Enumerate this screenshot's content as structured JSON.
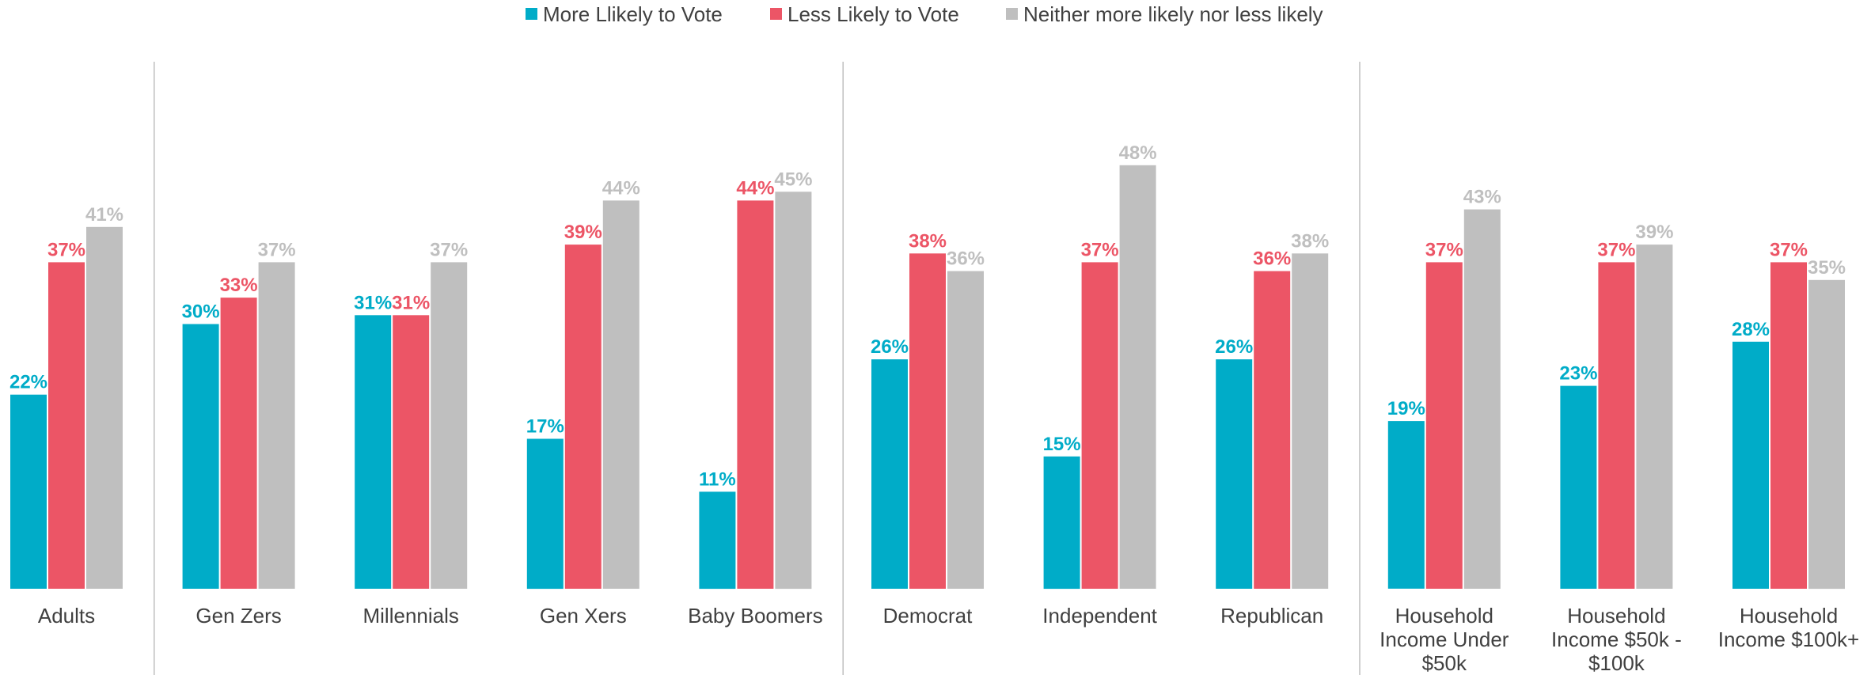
{
  "chart_data": {
    "type": "bar",
    "categories": [
      [
        "Adults"
      ],
      [
        "Gen Zers"
      ],
      [
        "Millennials"
      ],
      [
        "Gen Xers"
      ],
      [
        "Baby Boomers"
      ],
      [
        "Democrat"
      ],
      [
        "Independent"
      ],
      [
        "Republican"
      ],
      [
        "Household",
        "Income Under",
        "$50k"
      ],
      [
        "Household",
        "Income $50k -",
        "$100k"
      ],
      [
        "Household",
        "Income $100k+"
      ]
    ],
    "series": [
      {
        "name": "More Llikely to Vote",
        "color": "#00acc8",
        "values": [
          22,
          30,
          31,
          17,
          11,
          26,
          15,
          26,
          19,
          23,
          28
        ],
        "labels": [
          "22%",
          "30%",
          "31%",
          "17%",
          "11%",
          "26%",
          "15%",
          "26%",
          "19%",
          "23%",
          "28%"
        ]
      },
      {
        "name": "Less Likely to Vote",
        "color": "#ec5566",
        "values": [
          37,
          33,
          31,
          39,
          44,
          38,
          37,
          36,
          37,
          37,
          37
        ],
        "labels": [
          "37%",
          "33%",
          "31%",
          "39%",
          "44%",
          "38%",
          "37%",
          "36%",
          "37%",
          "37%",
          "37%"
        ]
      },
      {
        "name": "Neither more likely nor less likely",
        "color": "#bfbfbf",
        "values": [
          41,
          37,
          37,
          44,
          45,
          36,
          48,
          38,
          43,
          39,
          35
        ],
        "labels": [
          "41%",
          "37%",
          "37%",
          "44%",
          "45%",
          "36%",
          "48%",
          "38%",
          "43%",
          "39%",
          "35%"
        ]
      }
    ],
    "ylim": [
      0,
      48
    ],
    "grid": false,
    "legend_position": "top-center",
    "group_dividers_after": [
      0,
      4,
      7
    ]
  }
}
